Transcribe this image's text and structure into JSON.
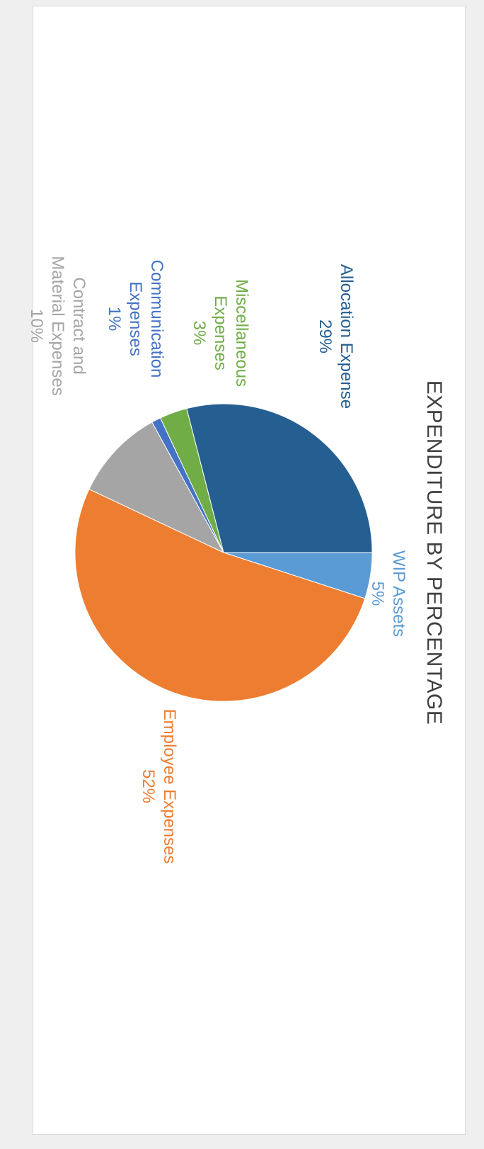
{
  "chart_data": {
    "type": "pie",
    "title": "EXPENDITURE BY PERCENTAGE",
    "slices": [
      {
        "name": "WIP Assets",
        "label_lines": [
          "WIP Assets"
        ],
        "percent_label": "5%",
        "value": 5,
        "color": "#5b9bd5"
      },
      {
        "name": "Employee Expenses",
        "label_lines": [
          "Employee Expenses"
        ],
        "percent_label": "52%",
        "value": 52,
        "color": "#ed7d31"
      },
      {
        "name": "Contract and Material Expenses",
        "label_lines": [
          "Contract and",
          "Material Expenses"
        ],
        "percent_label": "10%",
        "value": 10,
        "color": "#a5a5a5"
      },
      {
        "name": "Communication Expenses",
        "label_lines": [
          "Communication",
          "Expenses"
        ],
        "percent_label": "1%",
        "value": 1,
        "color": "#4472c4"
      },
      {
        "name": "Miscellaneous Expenses",
        "label_lines": [
          "Miscellaneous",
          "Expenses"
        ],
        "percent_label": "3%",
        "value": 3,
        "color": "#70ad47"
      },
      {
        "name": "Allocation Expense",
        "label_lines": [
          "Allocation Expense"
        ],
        "percent_label": "29%",
        "value": 29,
        "color": "#255e91"
      }
    ],
    "legend": "none",
    "data_labels": "category name and percentage, outside end"
  },
  "colors": {
    "title": "#404040",
    "background": "#ffffff",
    "page": "#efefef"
  }
}
